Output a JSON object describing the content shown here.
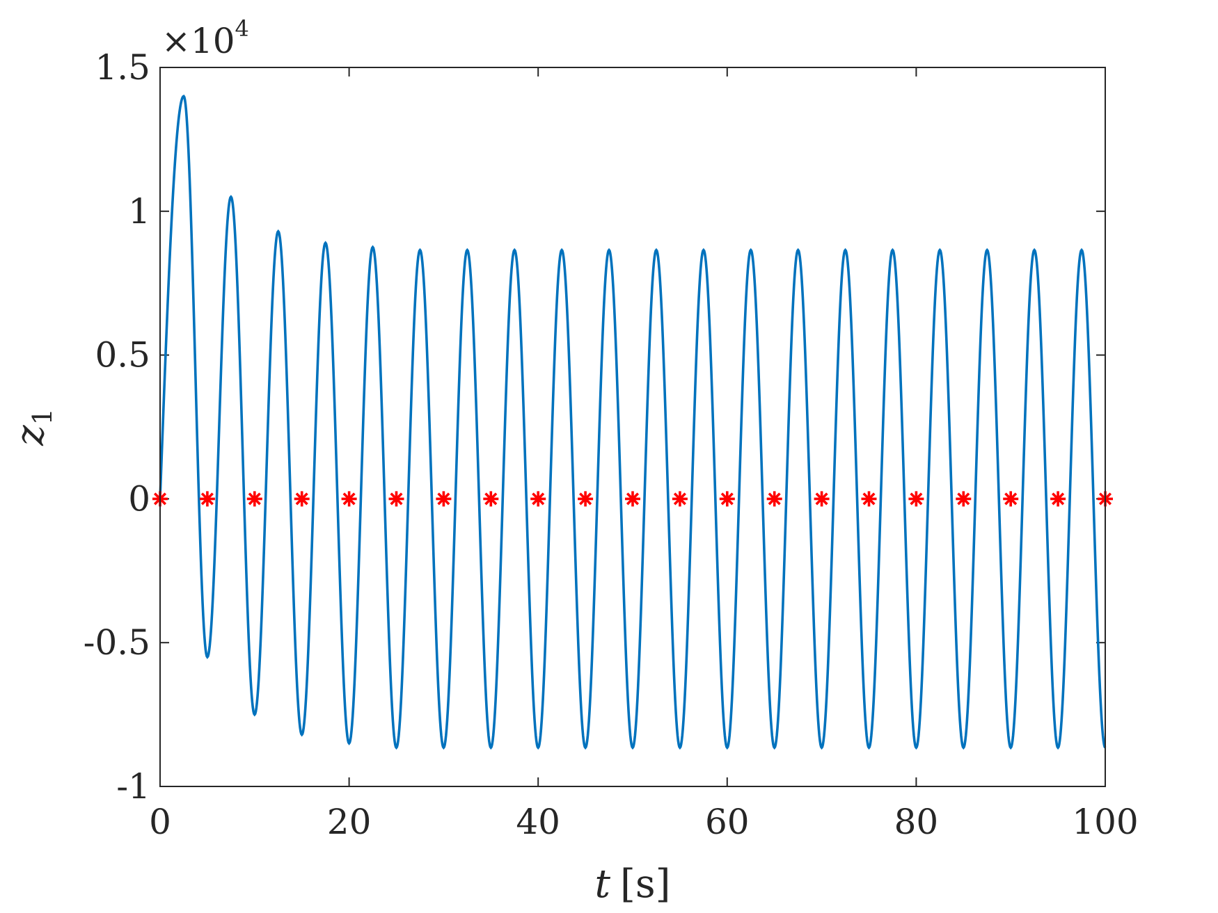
{
  "chart_data": {
    "type": "line",
    "title": "",
    "xlabel_var": "t",
    "xlabel_unit": "[s]",
    "ylabel_var": "z",
    "ylabel_sub": "1",
    "y_exponent_prefix": "×10",
    "y_exponent_power": "4",
    "xlim": [
      0,
      100
    ],
    "ylim": [
      -10000,
      15000
    ],
    "xticks": [
      0,
      20,
      40,
      60,
      80,
      100
    ],
    "xtick_labels": [
      "0",
      "20",
      "40",
      "60",
      "80",
      "100"
    ],
    "yticks": [
      -10000,
      -5000,
      0,
      5000,
      10000,
      15000
    ],
    "ytick_labels": [
      "-1",
      "-0.5",
      "0",
      "0.5",
      "1",
      "1.5"
    ],
    "grid": false,
    "series": [
      {
        "kind": "line",
        "color": "#0072BD",
        "peaks": [
          [
            2.5,
            14000
          ],
          [
            7.5,
            10500
          ],
          [
            12.5,
            9300
          ],
          [
            17.5,
            8900
          ],
          [
            22.5,
            8750
          ],
          [
            27.5,
            8650
          ],
          [
            32.5,
            8650
          ],
          [
            37.5,
            8650
          ],
          [
            42.5,
            8650
          ],
          [
            47.5,
            8650
          ],
          [
            52.5,
            8650
          ],
          [
            57.5,
            8650
          ],
          [
            62.5,
            8650
          ],
          [
            67.5,
            8650
          ],
          [
            72.5,
            8650
          ],
          [
            77.5,
            8650
          ],
          [
            82.5,
            8650
          ],
          [
            87.5,
            8650
          ],
          [
            92.5,
            8650
          ],
          [
            97.5,
            8650
          ]
        ],
        "troughs": [
          [
            5,
            -5500
          ],
          [
            10,
            -7500
          ],
          [
            15,
            -8200
          ],
          [
            20,
            -8500
          ],
          [
            25,
            -8650
          ],
          [
            30,
            -8650
          ],
          [
            35,
            -8650
          ],
          [
            40,
            -8650
          ],
          [
            45,
            -8650
          ],
          [
            50,
            -8650
          ],
          [
            55,
            -8650
          ],
          [
            60,
            -8650
          ],
          [
            65,
            -8650
          ],
          [
            70,
            -8650
          ],
          [
            75,
            -8650
          ],
          [
            80,
            -8650
          ],
          [
            85,
            -8650
          ],
          [
            90,
            -8650
          ],
          [
            95,
            -8650
          ],
          [
            100,
            -8650
          ]
        ]
      },
      {
        "kind": "markers",
        "marker": "asterisk",
        "color": "#FF0000",
        "x": [
          0,
          5,
          10,
          15,
          20,
          25,
          30,
          35,
          40,
          45,
          50,
          55,
          60,
          65,
          70,
          75,
          80,
          85,
          90,
          95,
          100
        ],
        "y": [
          0,
          0,
          0,
          0,
          0,
          0,
          0,
          0,
          0,
          0,
          0,
          0,
          0,
          0,
          0,
          0,
          0,
          0,
          0,
          0,
          0
        ]
      }
    ]
  }
}
